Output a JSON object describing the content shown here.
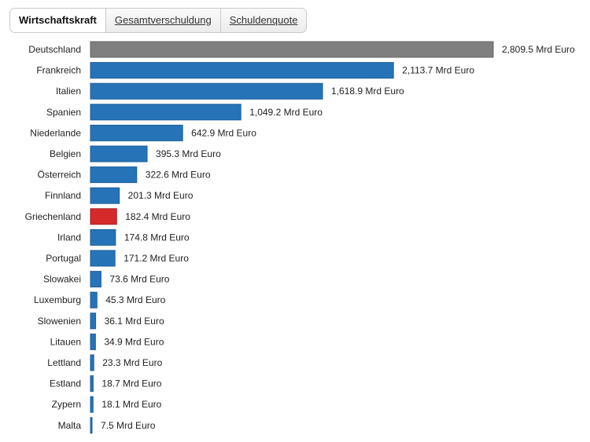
{
  "tabs": [
    {
      "label": "Wirtschaftskraft",
      "active": true
    },
    {
      "label": "Gesamtverschuldung",
      "active": false
    },
    {
      "label": "Schuldenquote",
      "active": false
    }
  ],
  "chart_data": {
    "type": "bar",
    "orientation": "horizontal",
    "title": "",
    "xlabel": "",
    "ylabel": "",
    "grid": false,
    "legend": "none",
    "unit_suffix": " Mrd Euro",
    "categories": [
      "Deutschland",
      "Frankreich",
      "Italien",
      "Spanien",
      "Niederlande",
      "Belgien",
      "Österreich",
      "Finnland",
      "Griechenland",
      "Irland",
      "Portugal",
      "Slowakei",
      "Luxemburg",
      "Slowenien",
      "Litauen",
      "Lettland",
      "Estland",
      "Zypern",
      "Malta"
    ],
    "values": [
      2809.5,
      2113.7,
      1618.9,
      1049.2,
      642.9,
      395.3,
      322.6,
      201.3,
      182.4,
      174.8,
      171.2,
      73.6,
      45.3,
      36.1,
      34.9,
      23.3,
      18.7,
      18.1,
      7.5
    ],
    "value_labels": [
      "2,809.5 Mrd Euro",
      "2,113.7 Mrd Euro",
      "1,618.9 Mrd Euro",
      "1,049.2 Mrd Euro",
      "642.9 Mrd Euro",
      "395.3 Mrd Euro",
      "322.6 Mrd Euro",
      "201.3 Mrd Euro",
      "182.4 Mrd Euro",
      "174.8 Mrd Euro",
      "171.2 Mrd Euro",
      "73.6 Mrd Euro",
      "45.3 Mrd Euro",
      "36.1 Mrd Euro",
      "34.9 Mrd Euro",
      "23.3 Mrd Euro",
      "18.7 Mrd Euro",
      "18.1 Mrd Euro",
      "7.5 Mrd Euro"
    ],
    "xlim": [
      0,
      2809.5
    ],
    "colors": {
      "default": "#2673b8",
      "default_border": "#1f5f99",
      "highlight_first": "#7f7f7f",
      "highlight_first_border": "#666666",
      "highlight_greece": "#d42a2a",
      "highlight_greece_border": "#a81e1e"
    },
    "bar_color_keys": [
      "highlight_first",
      "default",
      "default",
      "default",
      "default",
      "default",
      "default",
      "default",
      "highlight_greece",
      "default",
      "default",
      "default",
      "default",
      "default",
      "default",
      "default",
      "default",
      "default",
      "default"
    ]
  }
}
